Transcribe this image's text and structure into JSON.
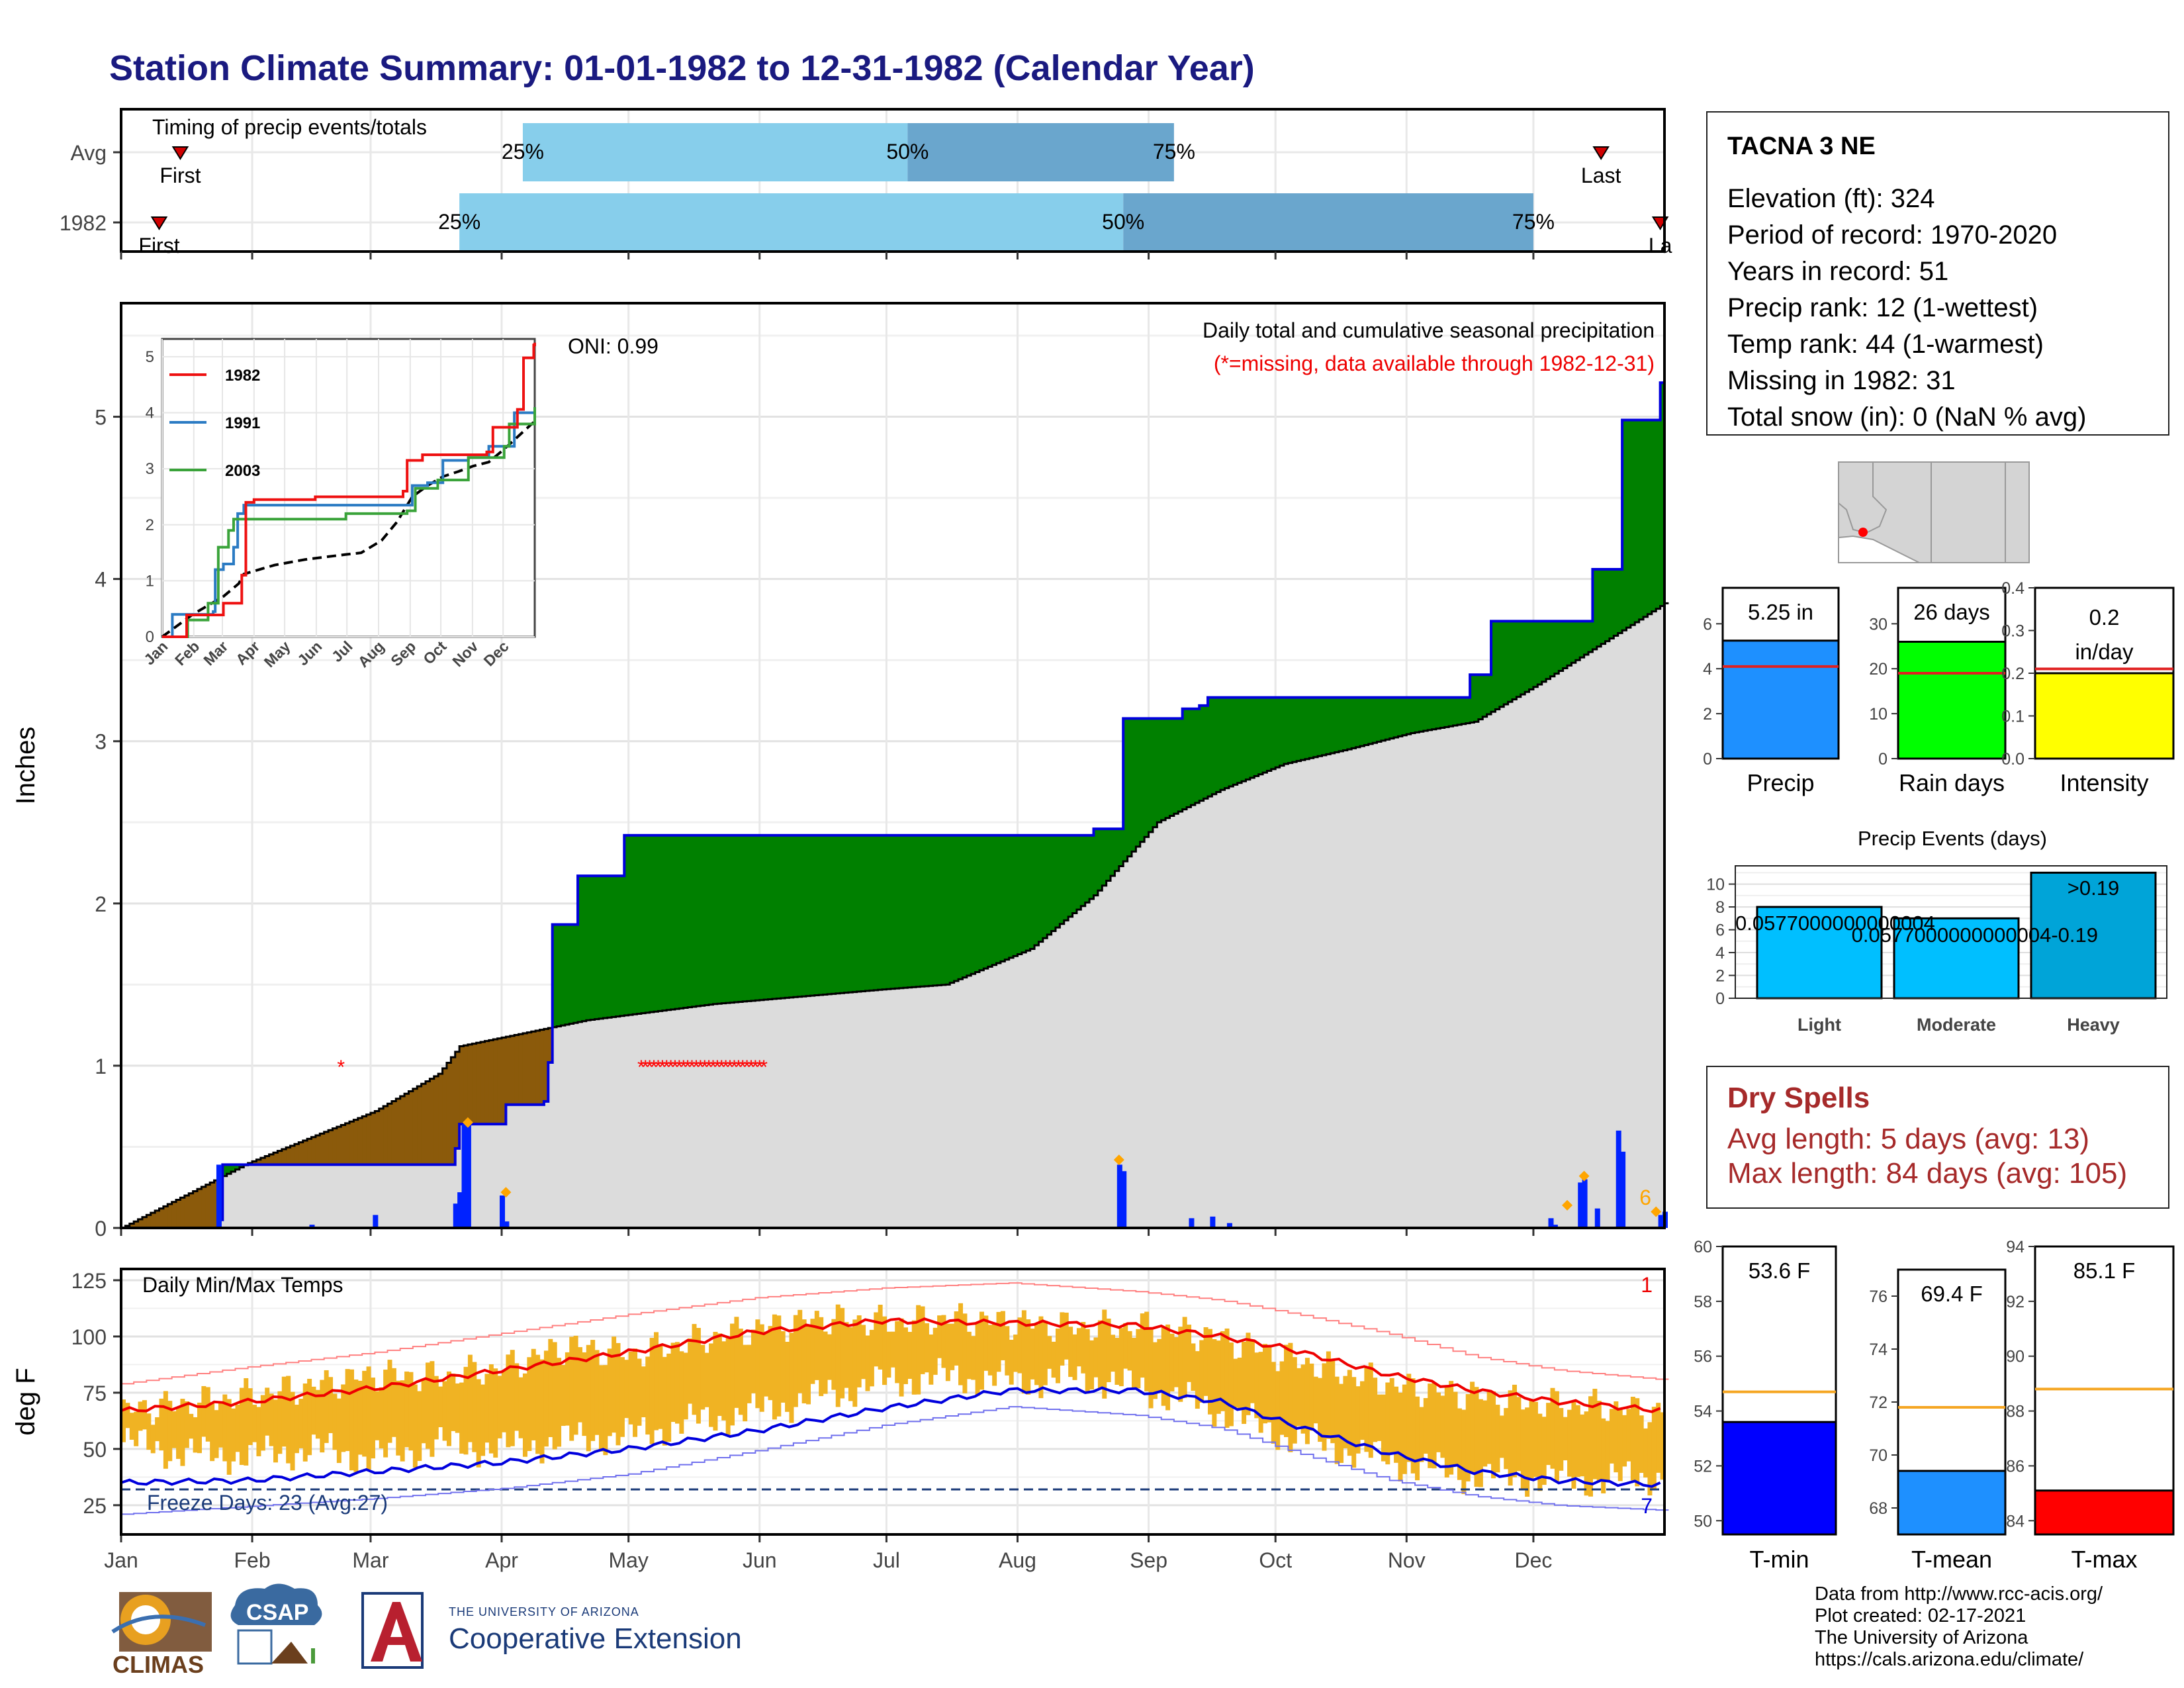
{
  "title": "Station Climate Summary: 01-01-1982 to 12-31-1982 (Calendar Year)",
  "timing_panel": {
    "label": "Timing of precip events/totals",
    "rows": [
      {
        "name": "Avg",
        "first_doy": 14,
        "p25": 95,
        "p50": 186,
        "p75": 249,
        "last_doy": 350,
        "first_label": "First",
        "last_label": "Last"
      },
      {
        "name": "1982",
        "first_doy": 9,
        "p25": 80,
        "p50": 237,
        "p75": 334,
        "last_doy": 364,
        "first_label": "First",
        "last_label": "La"
      }
    ],
    "pct_labels": [
      "25%",
      "50%",
      "75%"
    ]
  },
  "station": {
    "name": "TACNA 3 NE",
    "lines": [
      "Elevation (ft): 324",
      "Period of record: 1970-2020",
      "Years in record: 51",
      "Precip rank: 12 (1-wettest)",
      "Temp rank: 44 (1-warmest)",
      "Missing in 1982: 31",
      "Total snow (in): 0 (NaN % avg)"
    ]
  },
  "precip_panel": {
    "ylabel": "Inches",
    "title": "Daily total and cumulative seasonal precipitation",
    "subtitle": "(*=missing, data available through 1982-12-31)",
    "oni": "ONI: 0.99",
    "corner_count": "6"
  },
  "inset": {
    "legend": [
      "1982",
      "1991",
      "2003"
    ],
    "x_labels": [
      "Jan",
      "Feb",
      "Mar",
      "Apr",
      "May",
      "Jun",
      "Jul",
      "Aug",
      "Sep",
      "Oct",
      "Nov",
      "Dec"
    ],
    "y_labels": [
      "0",
      "1",
      "2",
      "3",
      "4",
      "5"
    ]
  },
  "temp_panel": {
    "ylabel": "deg F",
    "title": "Daily Min/Max Temps",
    "freeze_label": "Freeze Days: 23 (Avg:27)",
    "top_count": "1",
    "bottom_count": "7"
  },
  "x_months": [
    "Jan",
    "Feb",
    "Mar",
    "Apr",
    "May",
    "Jun",
    "Jul",
    "Aug",
    "Sep",
    "Oct",
    "Nov",
    "Dec"
  ],
  "summary_bars": [
    {
      "name": "Precip",
      "label": "5.25 in",
      "value": 5.25,
      "avg": 4.1,
      "ymax": 7.6,
      "ticks": [
        0,
        2,
        4,
        6
      ],
      "color": "#1e90ff"
    },
    {
      "name": "Rain days",
      "label": "26 days",
      "value": 26,
      "avg": 19,
      "ymax": 38,
      "ticks": [
        0,
        10,
        20,
        30
      ],
      "color": "#00ff00"
    },
    {
      "name": "Intensity",
      "label": "0.2 in/day",
      "value": 0.2,
      "avg": 0.21,
      "ymax": 0.4,
      "ticks": [
        "0.0",
        "0.1",
        "0.2",
        "0.3",
        "0.4"
      ],
      "color": "#ffff00"
    }
  ],
  "events_chart": {
    "title": "Precip Events (days)",
    "categories": [
      "Light",
      "Moderate",
      "Heavy"
    ],
    "values": [
      8,
      7,
      11
    ],
    "labels": [
      "0.0577000000000004",
      "0.0577000000000004-0.19",
      ">0.19"
    ],
    "ticks": [
      0,
      2,
      4,
      6,
      8,
      10
    ]
  },
  "dry_spells": {
    "title": "Dry Spells",
    "avg": "Avg length: 5 days (avg: 13)",
    "max": "Max length: 84 days (avg: 105)"
  },
  "temp_bars": [
    {
      "name": "T-min",
      "label": "53.6 F",
      "value": 53.6,
      "avg": 54.7,
      "ymin": 49.5,
      "ymax": 60,
      "ticks": [
        50,
        52,
        54,
        56,
        58,
        60
      ],
      "color": "#0000ff"
    },
    {
      "name": "T-mean",
      "label": "69.4 F",
      "value": 69.4,
      "avg": 71.8,
      "ymin": 67,
      "ymax": 77,
      "ticks": [
        68,
        70,
        72,
        74,
        76
      ],
      "color": "#1e90ff"
    },
    {
      "name": "T-max",
      "label": "85.1 F",
      "value": 85.1,
      "avg": 88.8,
      "ymin": 83.5,
      "ymax": 94,
      "ticks": [
        84,
        86,
        88,
        90,
        92,
        94
      ],
      "color": "#ff0000"
    }
  ],
  "credits": [
    "Data from http://www.rcc-acis.org/",
    "Plot created: 02-17-2021",
    "The University of Arizona",
    "https://cals.arizona.edu/climate/"
  ],
  "logos": {
    "climas": "CLIMAS",
    "csap": "CSAP",
    "ua_small": "THE UNIVERSITY OF ARIZONA",
    "ua_big": "Cooperative Extension"
  },
  "chart_data": [
    {
      "type": "area",
      "title": "Daily total and cumulative seasonal precipitation",
      "ylabel": "Inches",
      "ylim": [
        0,
        5.7
      ],
      "x_unit": "day of year",
      "cumulative_1982": [
        [
          1,
          0
        ],
        [
          23,
          0.05
        ],
        [
          24,
          0.39
        ],
        [
          79,
          0.49
        ],
        [
          80,
          0.64
        ],
        [
          90,
          0.64
        ],
        [
          91,
          0.76
        ],
        [
          100,
          0.78
        ],
        [
          101,
          1.02
        ],
        [
          102,
          1.87
        ],
        [
          107,
          1.87
        ],
        [
          108,
          2.17
        ],
        [
          118,
          2.17
        ],
        [
          119,
          2.42
        ],
        [
          230,
          2.46
        ],
        [
          236,
          2.46
        ],
        [
          237,
          3.14
        ],
        [
          250,
          3.14
        ],
        [
          251,
          3.2
        ],
        [
          255,
          3.22
        ],
        [
          257,
          3.27
        ],
        [
          318,
          3.27
        ],
        [
          319,
          3.41
        ],
        [
          323,
          3.41
        ],
        [
          324,
          3.74
        ],
        [
          347,
          3.74
        ],
        [
          348,
          4.06
        ],
        [
          354,
          4.06
        ],
        [
          355,
          4.98
        ],
        [
          363,
          4.98
        ],
        [
          364,
          5.21
        ],
        [
          365,
          5.25
        ]
      ],
      "cumulative_avg": [
        [
          0,
          0
        ],
        [
          30,
          0.4
        ],
        [
          60,
          0.72
        ],
        [
          75,
          0.95
        ],
        [
          80,
          1.12
        ],
        [
          110,
          1.28
        ],
        [
          140,
          1.38
        ],
        [
          180,
          1.47
        ],
        [
          195,
          1.5
        ],
        [
          215,
          1.72
        ],
        [
          230,
          2.05
        ],
        [
          245,
          2.5
        ],
        [
          260,
          2.7
        ],
        [
          275,
          2.86
        ],
        [
          290,
          2.95
        ],
        [
          305,
          3.05
        ],
        [
          320,
          3.12
        ],
        [
          335,
          3.35
        ],
        [
          350,
          3.6
        ],
        [
          365,
          3.85
        ]
      ],
      "daily_precip": [
        [
          23,
          0.39
        ],
        [
          45,
          0.02
        ],
        [
          60,
          0.08
        ],
        [
          79,
          0.15
        ],
        [
          80,
          0.22
        ],
        [
          81,
          0.64
        ],
        [
          82,
          0.64
        ],
        [
          90,
          0.2
        ],
        [
          91,
          0.04
        ],
        [
          236,
          0.39
        ],
        [
          237,
          0.35
        ],
        [
          253,
          0.06
        ],
        [
          258,
          0.07
        ],
        [
          262,
          0.03
        ],
        [
          338,
          0.06
        ],
        [
          339,
          0.02
        ],
        [
          345,
          0.28
        ],
        [
          346,
          0.3
        ],
        [
          349,
          0.12
        ],
        [
          354,
          0.6
        ],
        [
          355,
          0.47
        ],
        [
          364,
          0.08
        ],
        [
          365,
          0.1
        ]
      ],
      "missing_days": [
        [
          52,
          1.0
        ],
        [
          123,
          1.0
        ],
        [
          124,
          1.0
        ],
        [
          125,
          1.0
        ],
        [
          126,
          1.0
        ],
        [
          127,
          1.0
        ],
        [
          128,
          1.0
        ],
        [
          129,
          1.0
        ],
        [
          130,
          1.0
        ],
        [
          131,
          1.0
        ],
        [
          132,
          1.0
        ],
        [
          133,
          1.0
        ],
        [
          134,
          1.0
        ],
        [
          135,
          1.0
        ],
        [
          136,
          1.0
        ],
        [
          137,
          1.0
        ],
        [
          138,
          1.0
        ],
        [
          139,
          1.0
        ],
        [
          140,
          1.0
        ],
        [
          141,
          1.0
        ],
        [
          142,
          1.0
        ],
        [
          143,
          1.0
        ],
        [
          144,
          1.0
        ],
        [
          145,
          1.0
        ],
        [
          146,
          1.0
        ],
        [
          147,
          1.0
        ],
        [
          148,
          1.0
        ],
        [
          149,
          1.0
        ],
        [
          150,
          1.0
        ],
        [
          151,
          1.0
        ],
        [
          152,
          1.0
        ]
      ],
      "extreme_markers": [
        [
          82,
          0.65
        ],
        [
          91,
          0.22
        ],
        [
          236,
          0.42
        ],
        [
          342,
          0.14
        ],
        [
          346,
          0.32
        ],
        [
          363,
          0.1
        ]
      ]
    },
    {
      "type": "line",
      "title": "Daily Min/Max Temps",
      "ylabel": "deg F",
      "ylim": [
        12,
        130
      ],
      "x_unit": "day of year",
      "series": [
        {
          "name": "",
          "kind": "avg-max",
          "points": [
            [
              0,
              67
            ],
            [
              30,
              71
            ],
            [
              60,
              77
            ],
            [
              90,
              85
            ],
            [
              120,
              93
            ],
            [
              150,
              102
            ],
            [
              180,
              107
            ],
            [
              210,
              106
            ],
            [
              240,
              105
            ],
            [
              260,
              100
            ],
            [
              275,
              95
            ],
            [
              300,
              83
            ],
            [
              320,
              76
            ],
            [
              340,
              71
            ],
            [
              365,
              67
            ]
          ]
        },
        {
          "name": "",
          "kind": "avg-min",
          "points": [
            [
              0,
              35
            ],
            [
              30,
              36
            ],
            [
              60,
              40
            ],
            [
              90,
              44
            ],
            [
              120,
              50
            ],
            [
              150,
              58
            ],
            [
              180,
              68
            ],
            [
              210,
              76
            ],
            [
              240,
              76
            ],
            [
              260,
              71
            ],
            [
              280,
              59
            ],
            [
              300,
              48
            ],
            [
              320,
              40
            ],
            [
              340,
              36
            ],
            [
              365,
              34
            ]
          ]
        },
        {
          "name": "",
          "kind": "record-max",
          "points": [
            [
              0,
              79
            ],
            [
              30,
              86
            ],
            [
              60,
              92
            ],
            [
              90,
              100
            ],
            [
              120,
              108
            ],
            [
              150,
              115
            ],
            [
              180,
              119
            ],
            [
              210,
              121
            ],
            [
              240,
              117
            ],
            [
              260,
              113
            ],
            [
              280,
              106
            ],
            [
              300,
              98
            ],
            [
              320,
              88
            ],
            [
              340,
              82
            ],
            [
              365,
              78
            ]
          ]
        },
        {
          "name": "",
          "kind": "record-min",
          "points": [
            [
              0,
              21
            ],
            [
              30,
              24
            ],
            [
              60,
              27
            ],
            [
              90,
              31
            ],
            [
              120,
              37
            ],
            [
              150,
              47
            ],
            [
              180,
              58
            ],
            [
              210,
              66
            ],
            [
              240,
              62
            ],
            [
              260,
              56
            ],
            [
              280,
              44
            ],
            [
              300,
              33
            ],
            [
              320,
              26
            ],
            [
              340,
              22
            ],
            [
              365,
              20
            ]
          ]
        }
      ],
      "daily_range_1982": [
        [
          0,
          53,
          67
        ],
        [
          15,
          48,
          70
        ],
        [
          31,
          47,
          74
        ],
        [
          45,
          50,
          78
        ],
        [
          59,
          46,
          83
        ],
        [
          74,
          52,
          82
        ],
        [
          90,
          50,
          86
        ],
        [
          105,
          54,
          96
        ],
        [
          120,
          56,
          92
        ],
        [
          135,
          62,
          98
        ],
        [
          151,
          67,
          104
        ],
        [
          166,
          74,
          108
        ],
        [
          181,
          80,
          106
        ],
        [
          196,
          82,
          108
        ],
        [
          212,
          80,
          106
        ],
        [
          227,
          82,
          104
        ],
        [
          243,
          76,
          104
        ],
        [
          258,
          68,
          100
        ],
        [
          273,
          57,
          92
        ],
        [
          288,
          50,
          84
        ],
        [
          304,
          43,
          77
        ],
        [
          319,
          38,
          74
        ],
        [
          334,
          37,
          70
        ],
        [
          349,
          36,
          69
        ],
        [
          364,
          38,
          66
        ]
      ],
      "freeze_line": 32
    }
  ]
}
